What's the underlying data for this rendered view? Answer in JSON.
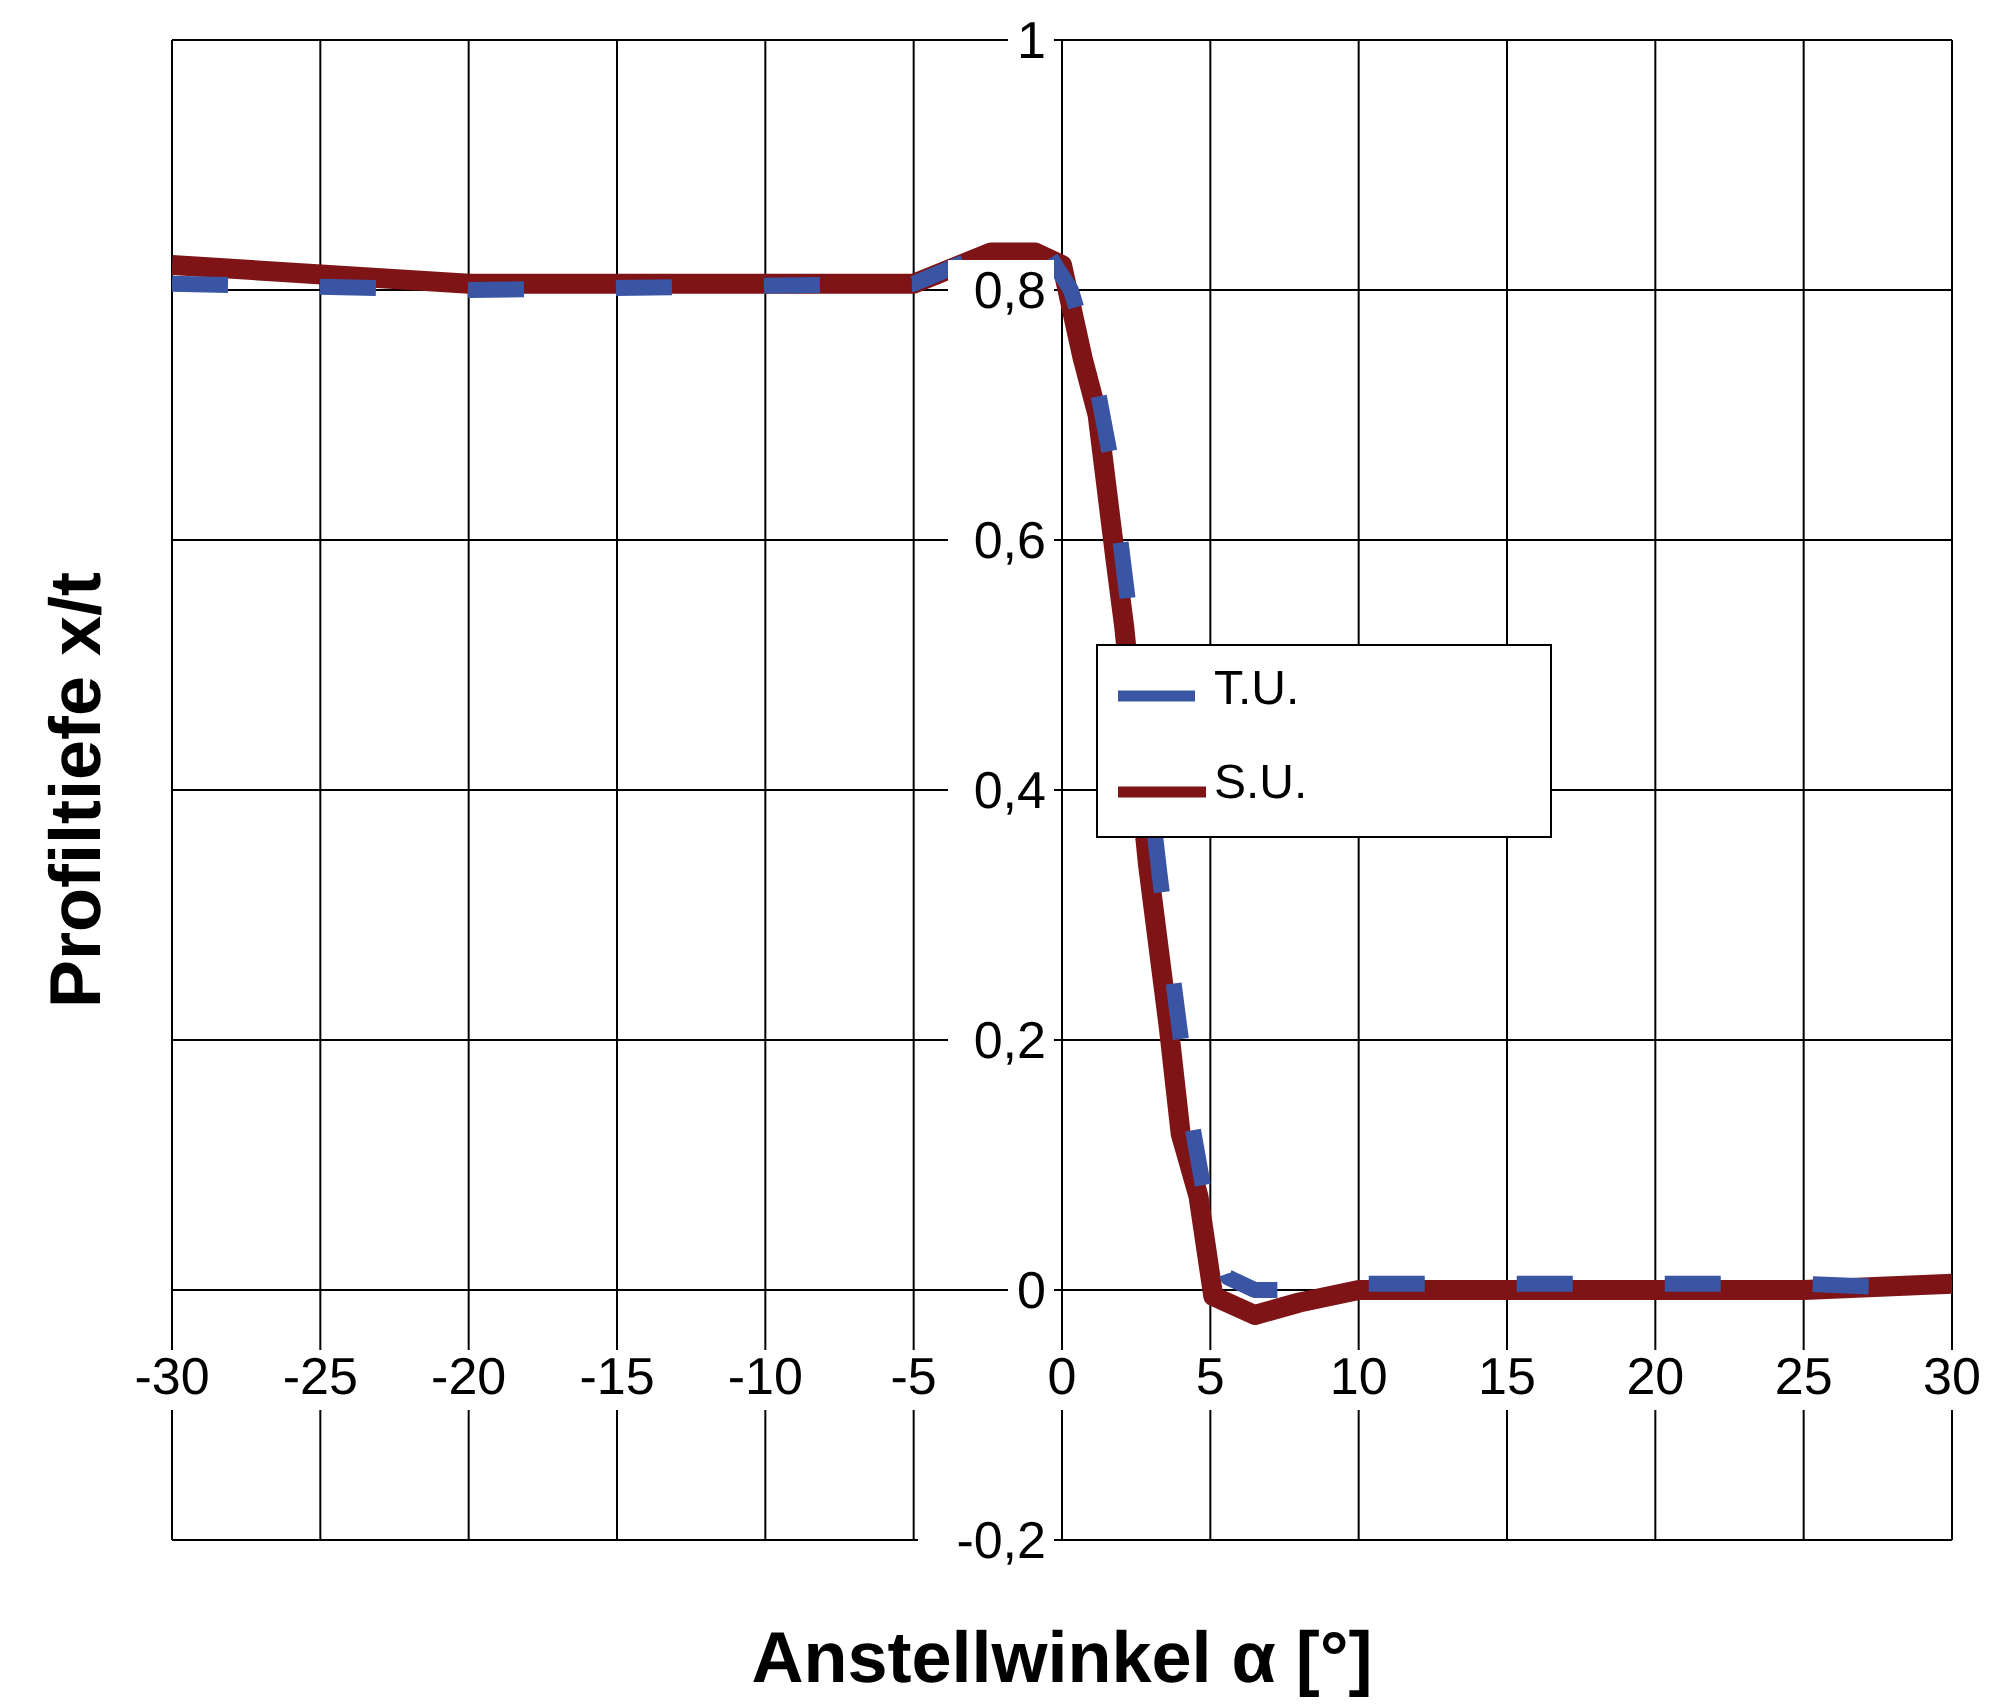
{
  "chart_data": {
    "type": "line",
    "xlabel": "Anstellwinkel α [°]",
    "ylabel": "Profiltiefe x/t",
    "xlim": [
      -30,
      30
    ],
    "xticks": [
      -30,
      -25,
      -20,
      -15,
      -10,
      -5,
      0,
      5,
      10,
      15,
      20,
      25,
      30
    ],
    "ylim": [
      -0.2,
      1
    ],
    "yticks": [
      {
        "value": -0.2,
        "label": "-0,2"
      },
      0,
      {
        "value": 0.2,
        "label": "0,2"
      },
      {
        "value": 0.4,
        "label": "0,4"
      },
      {
        "value": 0.6,
        "label": "0,6"
      },
      {
        "value": 0.8,
        "label": "0,8"
      },
      1
    ],
    "grid": true,
    "legend": "right",
    "marker": "none",
    "series": [
      {
        "name": "T.U.",
        "color": "#3a55a4",
        "line_style": "dashed",
        "x": [
          -30,
          -20,
          -5,
          -2.5,
          -0.5,
          0.3,
          1.0,
          1.6,
          2.2,
          2.8,
          3.3,
          3.9,
          4.4,
          5.0,
          5.6,
          6.5,
          9,
          10,
          25,
          30
        ],
        "values": [
          0.805,
          0.8,
          0.805,
          0.83,
          0.83,
          0.8,
          0.745,
          0.67,
          0.555,
          null,
          0.33,
          0.22,
          0.13,
          0.05,
          0.01,
          0,
          0,
          0.005,
          0.005,
          0
        ]
      },
      {
        "name": "S.U.",
        "color": "#7f1416",
        "line_style": "solid",
        "x": [
          -30,
          -20,
          -5,
          -2.4,
          -0.9,
          0,
          0.7,
          1.2,
          1.8,
          2.1,
          2.9,
          3.6,
          4.0,
          4.6,
          5.1,
          6.5,
          8,
          9,
          10,
          25,
          30
        ],
        "values": [
          0.82,
          0.805,
          0.805,
          0.83,
          0.83,
          0.82,
          0.745,
          0.7,
          0.585,
          0.53,
          0.34,
          0.21,
          0.125,
          0.075,
          -0.005,
          -0.02,
          -0.01,
          -0.005,
          0,
          0,
          0.005
        ]
      }
    ]
  }
}
